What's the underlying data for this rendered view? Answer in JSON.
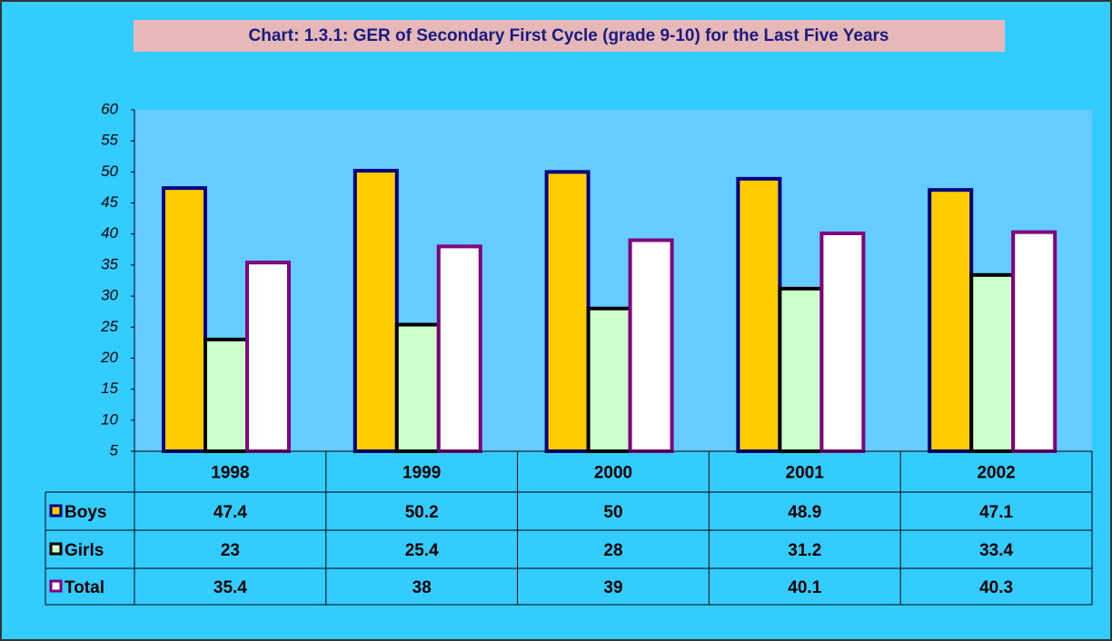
{
  "chart_data": {
    "type": "bar",
    "title": "Chart: 1.3.1: GER  of Secondary First Cycle (grade 9-10) for the Last Five Years",
    "categories": [
      "1998",
      "1999",
      "2000",
      "2001",
      "2002"
    ],
    "series": [
      {
        "name": "Boys",
        "color": "#ffcc00",
        "edge": "#000080",
        "values": [
          47.4,
          50.2,
          50,
          48.9,
          47.1
        ]
      },
      {
        "name": "Girls",
        "color": "#ccffcc",
        "edge": "#000000",
        "values": [
          23,
          25.4,
          28,
          31.2,
          33.4
        ]
      },
      {
        "name": "Total",
        "color": "#ffffff",
        "edge": "#800080",
        "values": [
          35.4,
          38,
          39,
          40.1,
          40.3
        ]
      }
    ],
    "ylim": [
      5,
      60
    ],
    "yticks": [
      5,
      10,
      15,
      20,
      25,
      30,
      35,
      40,
      45,
      50,
      55,
      60
    ],
    "grid": false
  }
}
